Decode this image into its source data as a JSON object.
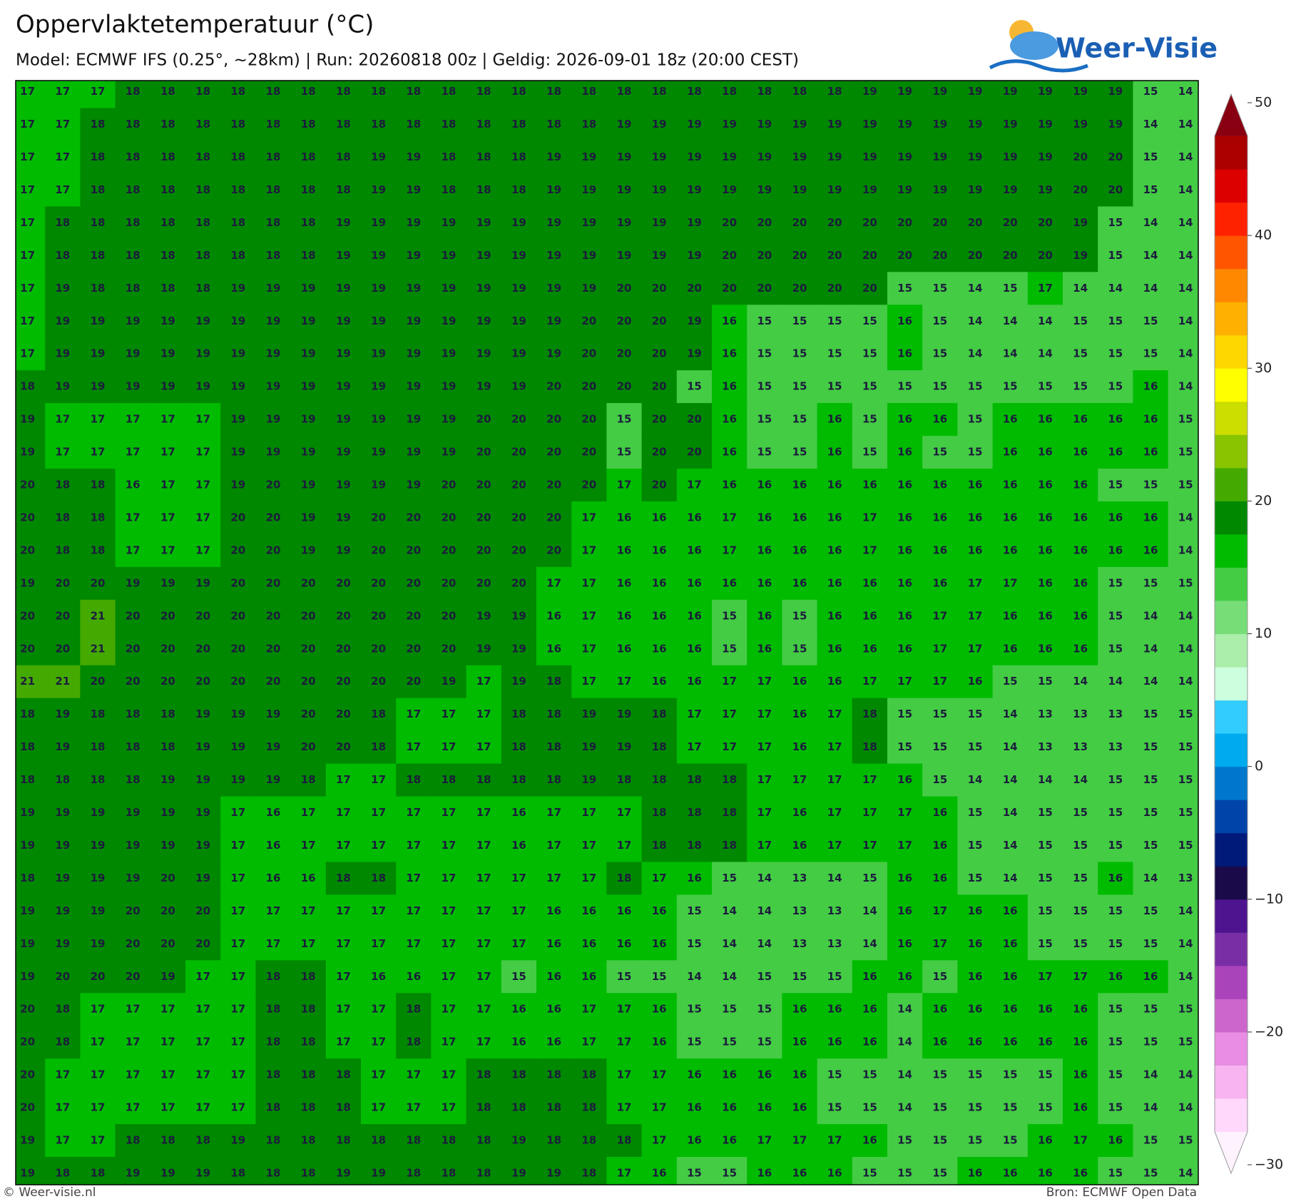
{
  "header": {
    "title": "Oppervlaktetemperatuur (°C)",
    "subtitle": "Model: ECMWF IFS (0.25°, ~28km)  |  Run: 20260818 00z  |  Geldig: 2026-09-01 18z (20:00 CEST)",
    "logo": "Weer-Visie"
  },
  "map": {
    "grid": [
      [
        17,
        17,
        17,
        18,
        18,
        18,
        18,
        18,
        18,
        18,
        18,
        18,
        18,
        18,
        18,
        18,
        18,
        18,
        18,
        18,
        18,
        18,
        18,
        18,
        19,
        19,
        19,
        19,
        19,
        19,
        19,
        19,
        15,
        14
      ],
      [
        17,
        17,
        18,
        18,
        18,
        18,
        18,
        18,
        18,
        18,
        18,
        18,
        18,
        18,
        18,
        18,
        18,
        19,
        19,
        19,
        19,
        19,
        19,
        19,
        19,
        19,
        19,
        19,
        19,
        19,
        19,
        19,
        14,
        14
      ],
      [
        17,
        17,
        18,
        18,
        18,
        18,
        18,
        18,
        18,
        18,
        19,
        19,
        18,
        18,
        18,
        19,
        19,
        19,
        19,
        19,
        19,
        19,
        19,
        19,
        19,
        19,
        19,
        19,
        19,
        19,
        20,
        20,
        15,
        14
      ],
      [
        17,
        17,
        18,
        18,
        18,
        18,
        18,
        18,
        18,
        18,
        19,
        19,
        18,
        18,
        18,
        19,
        19,
        19,
        19,
        19,
        19,
        19,
        19,
        19,
        19,
        19,
        19,
        19,
        19,
        19,
        20,
        20,
        15,
        14
      ],
      [
        17,
        18,
        18,
        18,
        18,
        18,
        18,
        18,
        18,
        19,
        19,
        19,
        19,
        19,
        19,
        19,
        19,
        19,
        19,
        19,
        20,
        20,
        20,
        20,
        20,
        20,
        20,
        20,
        20,
        20,
        19,
        15,
        14,
        14
      ],
      [
        17,
        18,
        18,
        18,
        18,
        18,
        18,
        18,
        18,
        19,
        19,
        19,
        19,
        19,
        19,
        19,
        19,
        19,
        19,
        19,
        20,
        20,
        20,
        20,
        20,
        20,
        20,
        20,
        20,
        20,
        19,
        15,
        14,
        14
      ],
      [
        17,
        19,
        18,
        18,
        18,
        18,
        19,
        19,
        19,
        19,
        19,
        19,
        19,
        19,
        19,
        19,
        19,
        20,
        20,
        20,
        20,
        20,
        20,
        20,
        20,
        15,
        15,
        14,
        15,
        17,
        14,
        14,
        14,
        14
      ],
      [
        17,
        19,
        19,
        19,
        19,
        19,
        19,
        19,
        19,
        19,
        19,
        19,
        19,
        19,
        19,
        19,
        20,
        20,
        20,
        19,
        16,
        15,
        15,
        15,
        15,
        16,
        15,
        14,
        14,
        14,
        15,
        15,
        15,
        14
      ],
      [
        17,
        19,
        19,
        19,
        19,
        19,
        19,
        19,
        19,
        19,
        19,
        19,
        19,
        19,
        19,
        19,
        20,
        20,
        20,
        19,
        16,
        15,
        15,
        15,
        15,
        16,
        15,
        14,
        14,
        14,
        15,
        15,
        15,
        14
      ],
      [
        18,
        19,
        19,
        19,
        19,
        19,
        19,
        19,
        19,
        19,
        19,
        19,
        19,
        19,
        19,
        20,
        20,
        20,
        20,
        15,
        16,
        15,
        15,
        15,
        15,
        15,
        15,
        15,
        15,
        15,
        15,
        15,
        16,
        14
      ],
      [
        19,
        17,
        17,
        17,
        17,
        17,
        19,
        19,
        19,
        19,
        19,
        19,
        19,
        20,
        20,
        20,
        20,
        15,
        20,
        20,
        16,
        15,
        15,
        16,
        15,
        16,
        16,
        15,
        16,
        16,
        16,
        16,
        16,
        15
      ],
      [
        19,
        17,
        17,
        17,
        17,
        17,
        19,
        19,
        19,
        19,
        19,
        19,
        19,
        20,
        20,
        20,
        20,
        15,
        20,
        20,
        16,
        15,
        15,
        16,
        15,
        16,
        15,
        15,
        16,
        16,
        16,
        16,
        16,
        15
      ],
      [
        20,
        18,
        18,
        16,
        17,
        17,
        19,
        20,
        19,
        19,
        19,
        19,
        20,
        20,
        20,
        20,
        20,
        17,
        20,
        17,
        16,
        16,
        16,
        16,
        16,
        16,
        16,
        16,
        16,
        16,
        16,
        15,
        15,
        15
      ],
      [
        20,
        18,
        18,
        17,
        17,
        17,
        20,
        20,
        19,
        19,
        20,
        20,
        20,
        20,
        20,
        20,
        17,
        16,
        16,
        16,
        17,
        16,
        16,
        16,
        17,
        16,
        16,
        16,
        16,
        16,
        16,
        16,
        16,
        14
      ],
      [
        20,
        18,
        18,
        17,
        17,
        17,
        20,
        20,
        19,
        19,
        20,
        20,
        20,
        20,
        20,
        20,
        17,
        16,
        16,
        16,
        17,
        16,
        16,
        16,
        17,
        16,
        16,
        16,
        16,
        16,
        16,
        16,
        16,
        14
      ],
      [
        19,
        20,
        20,
        19,
        19,
        19,
        20,
        20,
        20,
        20,
        20,
        20,
        20,
        20,
        20,
        17,
        17,
        16,
        16,
        16,
        16,
        16,
        16,
        16,
        16,
        16,
        16,
        17,
        17,
        16,
        16,
        15,
        15,
        15
      ],
      [
        20,
        20,
        21,
        20,
        20,
        20,
        20,
        20,
        20,
        20,
        20,
        20,
        20,
        19,
        19,
        16,
        17,
        16,
        16,
        16,
        15,
        16,
        15,
        16,
        16,
        16,
        17,
        17,
        16,
        16,
        16,
        15,
        14,
        14
      ],
      [
        20,
        20,
        21,
        20,
        20,
        20,
        20,
        20,
        20,
        20,
        20,
        20,
        20,
        19,
        19,
        16,
        17,
        16,
        16,
        16,
        15,
        16,
        15,
        16,
        16,
        16,
        17,
        17,
        16,
        16,
        16,
        15,
        14,
        14
      ],
      [
        21,
        21,
        20,
        20,
        20,
        20,
        20,
        20,
        20,
        20,
        20,
        20,
        19,
        17,
        19,
        18,
        17,
        17,
        16,
        16,
        17,
        17,
        16,
        16,
        17,
        17,
        17,
        16,
        15,
        15,
        14,
        14,
        14,
        14
      ],
      [
        18,
        19,
        18,
        18,
        18,
        19,
        19,
        19,
        20,
        20,
        18,
        17,
        17,
        17,
        18,
        18,
        19,
        19,
        18,
        17,
        17,
        17,
        16,
        17,
        18,
        15,
        15,
        15,
        14,
        13,
        13,
        13,
        15,
        15
      ],
      [
        18,
        19,
        18,
        18,
        18,
        19,
        19,
        19,
        20,
        20,
        18,
        17,
        17,
        17,
        18,
        18,
        19,
        19,
        18,
        17,
        17,
        17,
        16,
        17,
        18,
        15,
        15,
        15,
        14,
        13,
        13,
        13,
        15,
        15
      ],
      [
        18,
        18,
        18,
        18,
        19,
        19,
        19,
        19,
        18,
        17,
        17,
        18,
        18,
        18,
        18,
        18,
        19,
        18,
        18,
        18,
        18,
        17,
        17,
        17,
        17,
        16,
        15,
        14,
        14,
        14,
        14,
        15,
        15,
        15
      ],
      [
        19,
        19,
        19,
        19,
        19,
        19,
        17,
        16,
        17,
        17,
        17,
        17,
        17,
        17,
        16,
        17,
        17,
        17,
        18,
        18,
        18,
        17,
        16,
        17,
        17,
        17,
        16,
        15,
        14,
        15,
        15,
        15,
        15,
        15
      ],
      [
        19,
        19,
        19,
        19,
        19,
        19,
        17,
        16,
        17,
        17,
        17,
        17,
        17,
        17,
        16,
        17,
        17,
        17,
        18,
        18,
        18,
        17,
        16,
        17,
        17,
        17,
        16,
        15,
        14,
        15,
        15,
        15,
        15,
        15
      ],
      [
        18,
        19,
        19,
        19,
        20,
        19,
        17,
        16,
        16,
        18,
        18,
        17,
        17,
        17,
        17,
        17,
        17,
        18,
        17,
        16,
        15,
        14,
        13,
        14,
        15,
        16,
        16,
        15,
        14,
        15,
        15,
        16,
        14,
        13
      ],
      [
        19,
        19,
        19,
        20,
        20,
        20,
        17,
        17,
        17,
        17,
        17,
        17,
        17,
        17,
        17,
        16,
        16,
        16,
        16,
        15,
        14,
        14,
        13,
        13,
        14,
        16,
        17,
        16,
        16,
        15,
        15,
        15,
        15,
        14
      ],
      [
        19,
        19,
        19,
        20,
        20,
        20,
        17,
        17,
        17,
        17,
        17,
        17,
        17,
        17,
        17,
        16,
        16,
        16,
        16,
        15,
        14,
        14,
        13,
        13,
        14,
        16,
        17,
        16,
        16,
        15,
        15,
        15,
        15,
        14
      ],
      [
        19,
        20,
        20,
        20,
        19,
        17,
        17,
        18,
        18,
        17,
        16,
        16,
        17,
        17,
        15,
        16,
        16,
        15,
        15,
        14,
        14,
        15,
        15,
        15,
        16,
        16,
        15,
        16,
        16,
        17,
        17,
        16,
        16,
        14
      ],
      [
        20,
        18,
        17,
        17,
        17,
        17,
        17,
        18,
        18,
        17,
        17,
        18,
        17,
        17,
        16,
        16,
        17,
        17,
        16,
        15,
        15,
        15,
        16,
        16,
        16,
        14,
        16,
        16,
        16,
        16,
        16,
        15,
        15,
        15
      ],
      [
        20,
        18,
        17,
        17,
        17,
        17,
        17,
        18,
        18,
        17,
        17,
        18,
        17,
        17,
        16,
        16,
        17,
        17,
        16,
        15,
        15,
        15,
        16,
        16,
        16,
        14,
        16,
        16,
        16,
        16,
        16,
        15,
        15,
        15
      ],
      [
        20,
        17,
        17,
        17,
        17,
        17,
        17,
        18,
        18,
        18,
        17,
        17,
        17,
        18,
        18,
        18,
        18,
        17,
        17,
        16,
        16,
        16,
        16,
        15,
        15,
        14,
        15,
        15,
        15,
        15,
        16,
        15,
        14,
        14
      ],
      [
        20,
        17,
        17,
        17,
        17,
        17,
        17,
        18,
        18,
        18,
        17,
        17,
        17,
        18,
        18,
        18,
        18,
        17,
        17,
        16,
        16,
        16,
        16,
        15,
        15,
        14,
        15,
        15,
        15,
        15,
        16,
        15,
        14,
        14
      ],
      [
        19,
        17,
        17,
        18,
        18,
        18,
        19,
        18,
        18,
        18,
        18,
        18,
        18,
        18,
        19,
        18,
        18,
        18,
        17,
        16,
        16,
        17,
        17,
        17,
        16,
        15,
        15,
        15,
        15,
        16,
        17,
        16,
        15,
        15
      ],
      [
        19,
        18,
        18,
        19,
        19,
        19,
        18,
        18,
        18,
        19,
        19,
        18,
        18,
        18,
        19,
        19,
        18,
        17,
        16,
        15,
        15,
        16,
        16,
        16,
        15,
        15,
        15,
        16,
        16,
        16,
        16,
        15,
        15,
        14
      ]
    ]
  },
  "colorbar": {
    "lim": [
      -30,
      50
    ],
    "ticks": [
      50,
      40,
      30,
      20,
      10,
      0,
      {
        "value": -10,
        "label": "−10"
      },
      {
        "value": -20,
        "label": "−20"
      },
      {
        "value": -30,
        "label": "−30"
      }
    ],
    "colors": [
      "#fff2ff",
      "#ffd8fb",
      "#f7b4f0",
      "#e88ce4",
      "#cc66cc",
      "#aa44bb",
      "#7a2ea5",
      "#4e1490",
      "#1a0a4a",
      "#001a7a",
      "#0044aa",
      "#0077cc",
      "#00aaee",
      "#33ccff",
      "#ccffdd",
      "#aaeeaa",
      "#77dd77",
      "#44cc44",
      "#00bb00",
      "#008800",
      "#44aa00",
      "#88c400",
      "#ccdd00",
      "#ffff00",
      "#ffd700",
      "#ffb000",
      "#ff8800",
      "#ff5500",
      "#ff2200",
      "#dd0000",
      "#aa0000",
      "#880011"
    ]
  },
  "footer": {
    "left": "© Weer-visie.nl",
    "right": "Bron: ECMWF Open Data"
  }
}
